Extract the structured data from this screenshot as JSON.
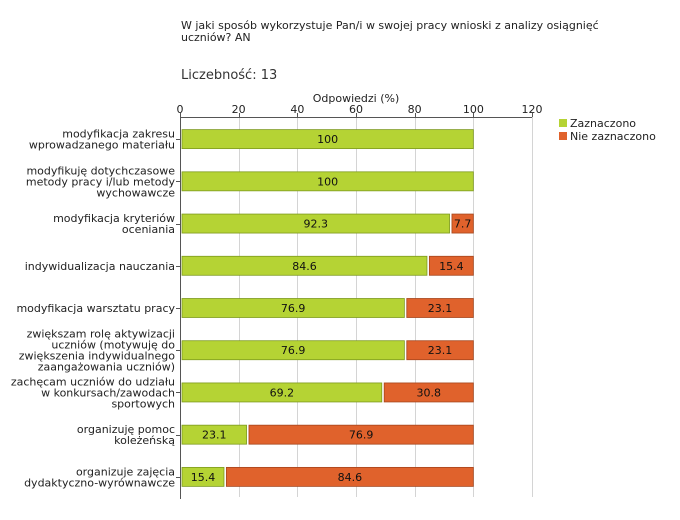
{
  "title": "W jaki sposób wykorzystuje Pan/i w swojej pracy wnioski z analizy osiągnięć uczniów? AN",
  "count_label": "Liczebność:",
  "count_value": "13",
  "legend": [
    {
      "label": "Zaznaczono",
      "color": "#b5d334"
    },
    {
      "label": "Nie zaznaczono",
      "color": "#e0622c"
    }
  ],
  "chart_data": {
    "type": "bar",
    "orientation": "horizontal",
    "stacked": true,
    "xlabel": "Odpowiedzi (%)",
    "xlim": [
      0,
      120
    ],
    "xticks": [
      0,
      20,
      40,
      60,
      80,
      100,
      120
    ],
    "grid": true,
    "categories": [
      [
        "modyfikacja zakresu",
        "wprowadzanego materiału"
      ],
      [
        "modyfikuję dotychczasowe",
        "metody pracy i/lub metody",
        "wychowawcze"
      ],
      [
        "modyfikacja kryteriów",
        "oceniania"
      ],
      [
        "indywidualizacja nauczania"
      ],
      [
        "modyfikacja warsztatu pracy"
      ],
      [
        "zwiększam rolę aktywizacji",
        "uczniów (motywuję do",
        "zwiększenia indywidualnego",
        "zaangażowania uczniów)"
      ],
      [
        "zachęcam uczniów do udziału",
        "w konkursach/zawodach",
        "sportowych"
      ],
      [
        "organizuję pomoc",
        "koleżeńską"
      ],
      [
        "organizuje zajęcia",
        "dydaktyczno-wyrównawcze"
      ]
    ],
    "series": [
      {
        "name": "Zaznaczono",
        "color": "#b5d334",
        "values": [
          100,
          100,
          92.3,
          84.6,
          76.9,
          76.9,
          69.2,
          23.1,
          15.4
        ],
        "labels": [
          "100",
          "100",
          "92.3",
          "84.6",
          "76.9",
          "76.9",
          "69.2",
          "23.1",
          "15.4"
        ]
      },
      {
        "name": "Nie zaznaczono",
        "color": "#e0622c",
        "values": [
          0,
          0,
          7.7,
          15.4,
          23.1,
          23.1,
          30.8,
          76.9,
          84.6
        ],
        "labels": [
          "",
          "",
          "7.7",
          "15.4",
          "23.1",
          "23.1",
          "30.8",
          "76.9",
          "84.6"
        ]
      }
    ]
  }
}
